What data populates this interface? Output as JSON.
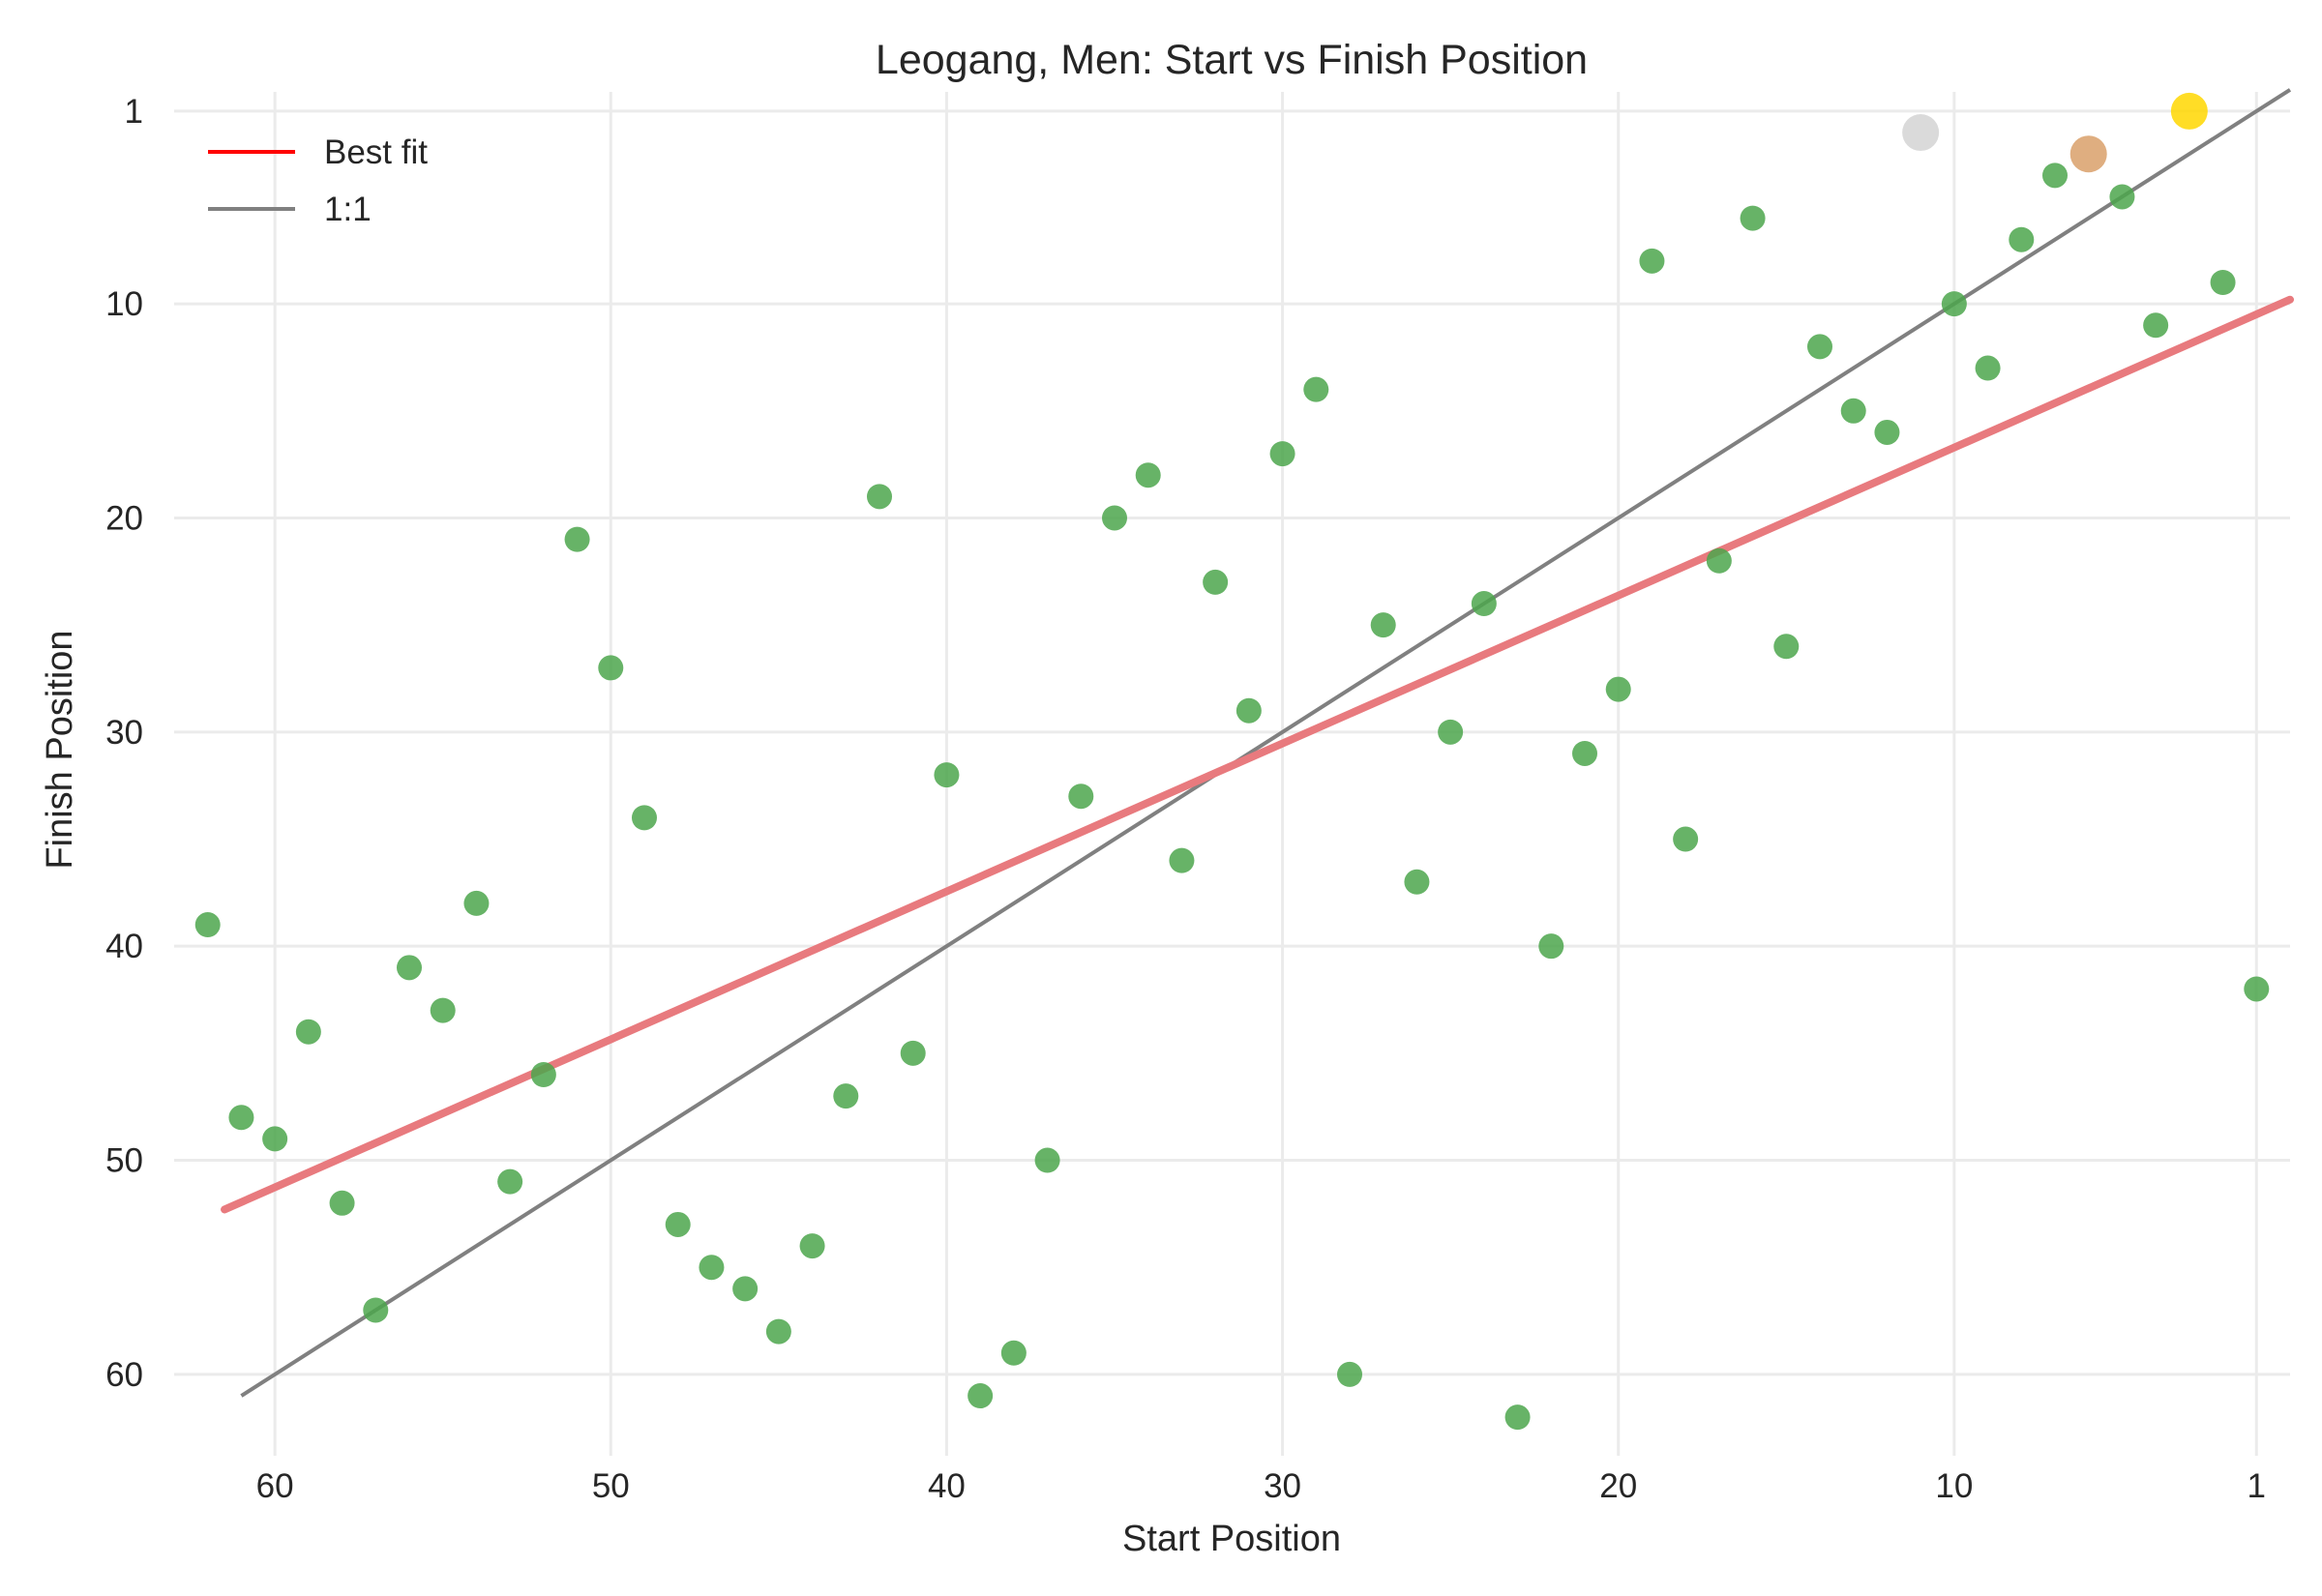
{
  "chart_data": {
    "type": "scatter",
    "title": "Leogang, Men: Start vs Finish Position",
    "xlabel": "Start Position",
    "ylabel": "Finish Position",
    "x_reversed": true,
    "y_reversed": true,
    "xlim": [
      63,
      0
    ],
    "ylim": [
      63.8,
      0.1
    ],
    "xticks": [
      60,
      50,
      40,
      30,
      20,
      10,
      1
    ],
    "yticks": [
      1,
      10,
      20,
      30,
      40,
      50,
      60
    ],
    "grid": true,
    "legend": {
      "placement": "top-left",
      "entries": [
        {
          "label": "Best fit",
          "color": "#ff0000"
        },
        {
          "label": "1:1",
          "color": "#808080"
        }
      ]
    },
    "colors": {
      "points": "#4ca64c",
      "gold": "#ffd700",
      "silver": "#d3d3d3",
      "bronze": "#d9a06a",
      "best_fit": "#e87a7e",
      "identity": "#808080"
    },
    "series": [
      {
        "kind": "points",
        "points": [
          [
            62,
            39
          ],
          [
            61,
            48
          ],
          [
            60,
            49
          ],
          [
            59,
            44
          ],
          [
            58,
            52
          ],
          [
            57,
            57
          ],
          [
            56,
            41
          ],
          [
            55,
            43
          ],
          [
            54,
            38
          ],
          [
            53,
            51
          ],
          [
            52,
            46
          ],
          [
            51,
            21
          ],
          [
            50,
            27
          ],
          [
            49,
            34
          ],
          [
            48,
            53
          ],
          [
            47,
            55
          ],
          [
            46,
            56
          ],
          [
            45,
            58
          ],
          [
            44,
            54
          ],
          [
            43,
            47
          ],
          [
            42,
            19
          ],
          [
            41,
            45
          ],
          [
            40,
            32
          ],
          [
            39,
            61
          ],
          [
            38,
            59
          ],
          [
            37,
            50
          ],
          [
            36,
            33
          ],
          [
            35,
            20
          ],
          [
            34,
            18
          ],
          [
            33,
            36
          ],
          [
            32,
            23
          ],
          [
            31,
            29
          ],
          [
            30,
            17
          ],
          [
            29,
            14
          ],
          [
            28,
            60
          ],
          [
            27,
            25
          ],
          [
            26,
            37
          ],
          [
            25,
            30
          ],
          [
            24,
            24
          ],
          [
            23,
            62
          ],
          [
            22,
            40
          ],
          [
            21,
            31
          ],
          [
            20,
            28
          ],
          [
            19,
            8
          ],
          [
            18,
            35
          ],
          [
            17,
            22
          ],
          [
            16,
            6
          ],
          [
            15,
            26
          ],
          [
            14,
            12
          ],
          [
            13,
            15
          ],
          [
            12,
            16
          ],
          [
            10,
            10
          ],
          [
            9,
            13
          ],
          [
            8,
            7
          ],
          [
            7,
            4
          ],
          [
            5,
            5
          ],
          [
            4,
            11
          ],
          [
            2,
            9
          ],
          [
            1,
            42
          ]
        ]
      },
      {
        "kind": "podium",
        "points": [
          {
            "x": 3,
            "y": 1,
            "medal": "gold"
          },
          {
            "x": 11,
            "y": 2,
            "medal": "silver"
          },
          {
            "x": 6,
            "y": 3,
            "medal": "bronze"
          }
        ]
      }
    ],
    "best_fit": {
      "x": [
        61.5,
        0
      ],
      "y": [
        52.3,
        9.8
      ]
    },
    "identity_line": {
      "x": [
        61,
        0
      ],
      "y": [
        61,
        0
      ]
    }
  }
}
